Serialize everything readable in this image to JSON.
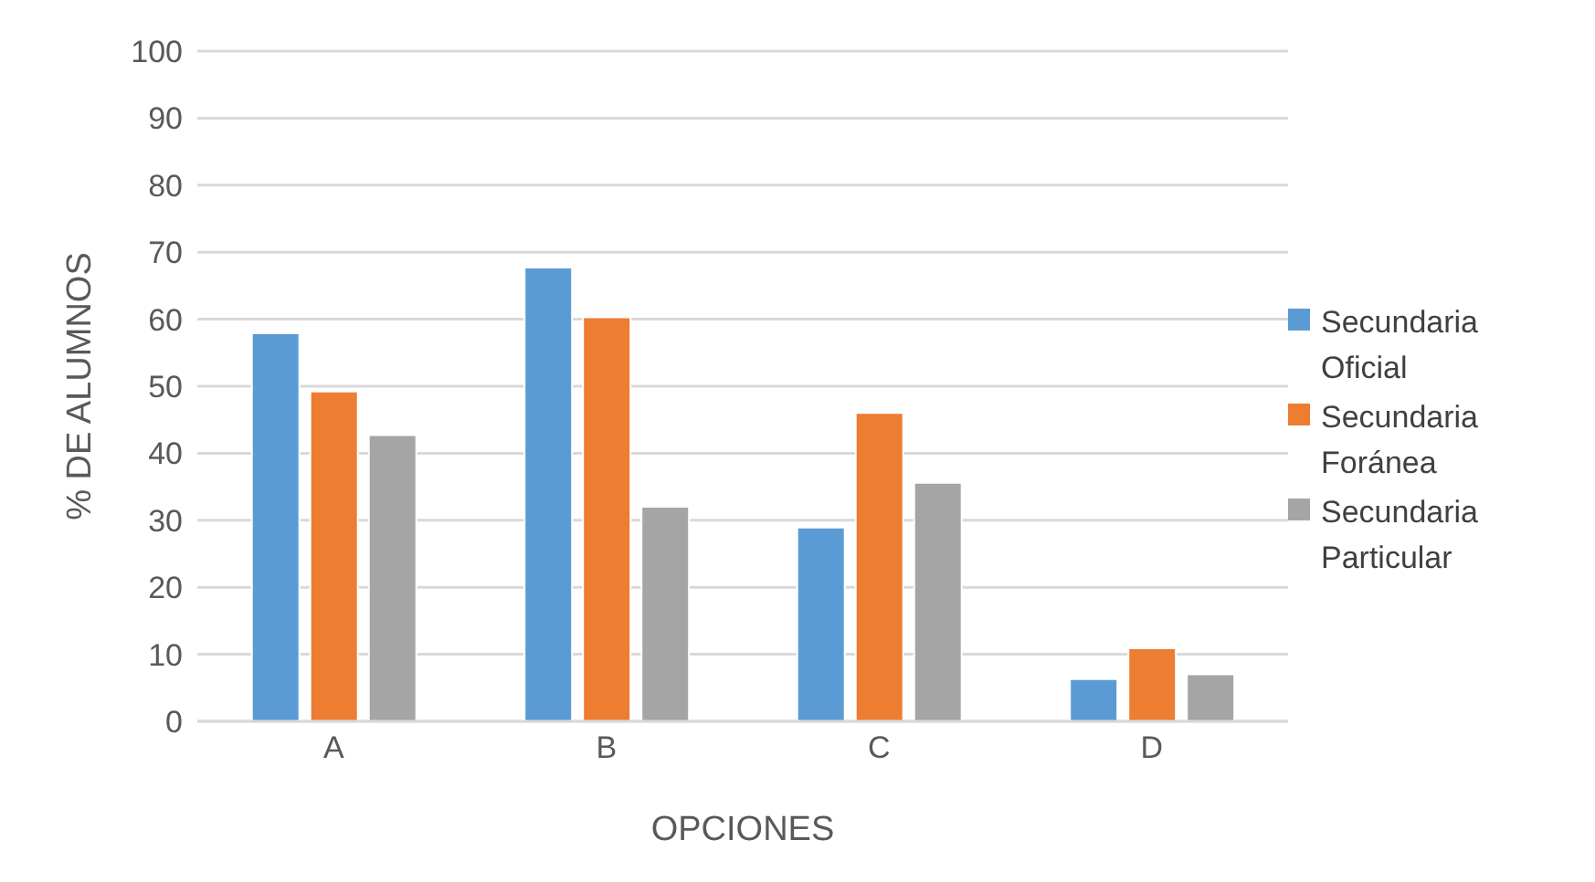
{
  "chart_data": {
    "type": "bar",
    "xlabel": "OPCIONES",
    "ylabel": "% DE ALUMNOS",
    "categories": [
      "A",
      "B",
      "C",
      "D"
    ],
    "series": [
      {
        "name": "Secundaria Oficial",
        "color": "#5b9bd5",
        "values": [
          57.9,
          67.7,
          28.9,
          6.3
        ]
      },
      {
        "name": "Secundaria Foránea",
        "color": "#ed7d31",
        "values": [
          49.2,
          60.3,
          46.0,
          10.9
        ]
      },
      {
        "name": "Secundaria Particular",
        "color": "#a5a5a5",
        "values": [
          42.7,
          32.0,
          35.6,
          7.0
        ]
      }
    ],
    "ylim": [
      0,
      100
    ],
    "yticks": [
      0,
      10,
      20,
      30,
      40,
      50,
      60,
      70,
      80,
      90,
      100
    ],
    "grid": "y",
    "legend": "right"
  }
}
